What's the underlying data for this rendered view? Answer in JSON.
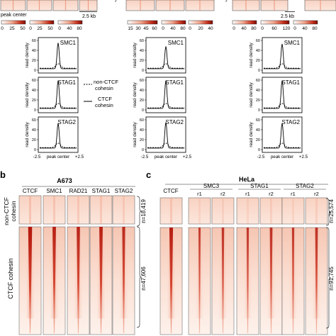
{
  "figure": {
    "panel_a_top": {
      "peak_center_label": "peak center",
      "distance_label": "2.5 kb",
      "colorbar_groups": [
        [
          "0",
          "25",
          "50"
        ],
        [
          "0",
          "25",
          "50"
        ],
        [
          "0",
          "40",
          "80"
        ],
        [
          "15",
          "30",
          "45",
          "60"
        ],
        [
          "0",
          "40",
          "80"
        ],
        [
          "0",
          "20",
          "40"
        ],
        [
          "0",
          "40",
          "80"
        ],
        [
          "0",
          "60",
          "120"
        ],
        [
          "0",
          "40",
          "80"
        ]
      ]
    },
    "profile_panels": {
      "columns": 3,
      "rows": [
        {
          "label": "SMC1",
          "ticks": [
            "0",
            "20",
            "40",
            "60"
          ]
        },
        {
          "label": "STAG1",
          "ticks": [
            "0",
            "20",
            "40",
            "60"
          ]
        },
        {
          "label": "STAG2",
          "ticks": [
            "0",
            "20",
            "40",
            "60"
          ]
        }
      ],
      "y_axis_label": "read density",
      "x_axis_labels": [
        "-2.5",
        "peak center",
        "+2.5"
      ],
      "legend": {
        "dashed_label_line1": "non-CTCF",
        "dashed_label_line2": "cohesin",
        "solid_label_line1": "CTCF",
        "solid_label_line2": "cohesin"
      }
    },
    "panel_b": {
      "letter": "b",
      "title": "A673",
      "columns": [
        "CTCF",
        "SMC1",
        "RAD21",
        "STAG1",
        "STAG2"
      ],
      "row_label_top_line1": "non-CTCF",
      "row_label_top_line2": "cohesin",
      "row_label_bottom": "CTCF cohesin",
      "n_top": "n=18,419",
      "n_bottom": "n=47,606"
    },
    "panel_c": {
      "letter": "c",
      "title": "HeLa",
      "first_column": "CTCF",
      "groups": [
        {
          "name": "SMC3",
          "reps": [
            "r1",
            "r2"
          ]
        },
        {
          "name": "STAG1",
          "reps": [
            "r1",
            "r2"
          ]
        },
        {
          "name": "STAG2",
          "reps": [
            "r1",
            "r2"
          ]
        }
      ],
      "n_top": "n=25,574",
      "n_bottom": "n=91,745"
    },
    "colors": {
      "heatmap_dark": "#b3160c",
      "heatmap_light": "#fdf0ea",
      "profile_line": "#000000"
    }
  }
}
